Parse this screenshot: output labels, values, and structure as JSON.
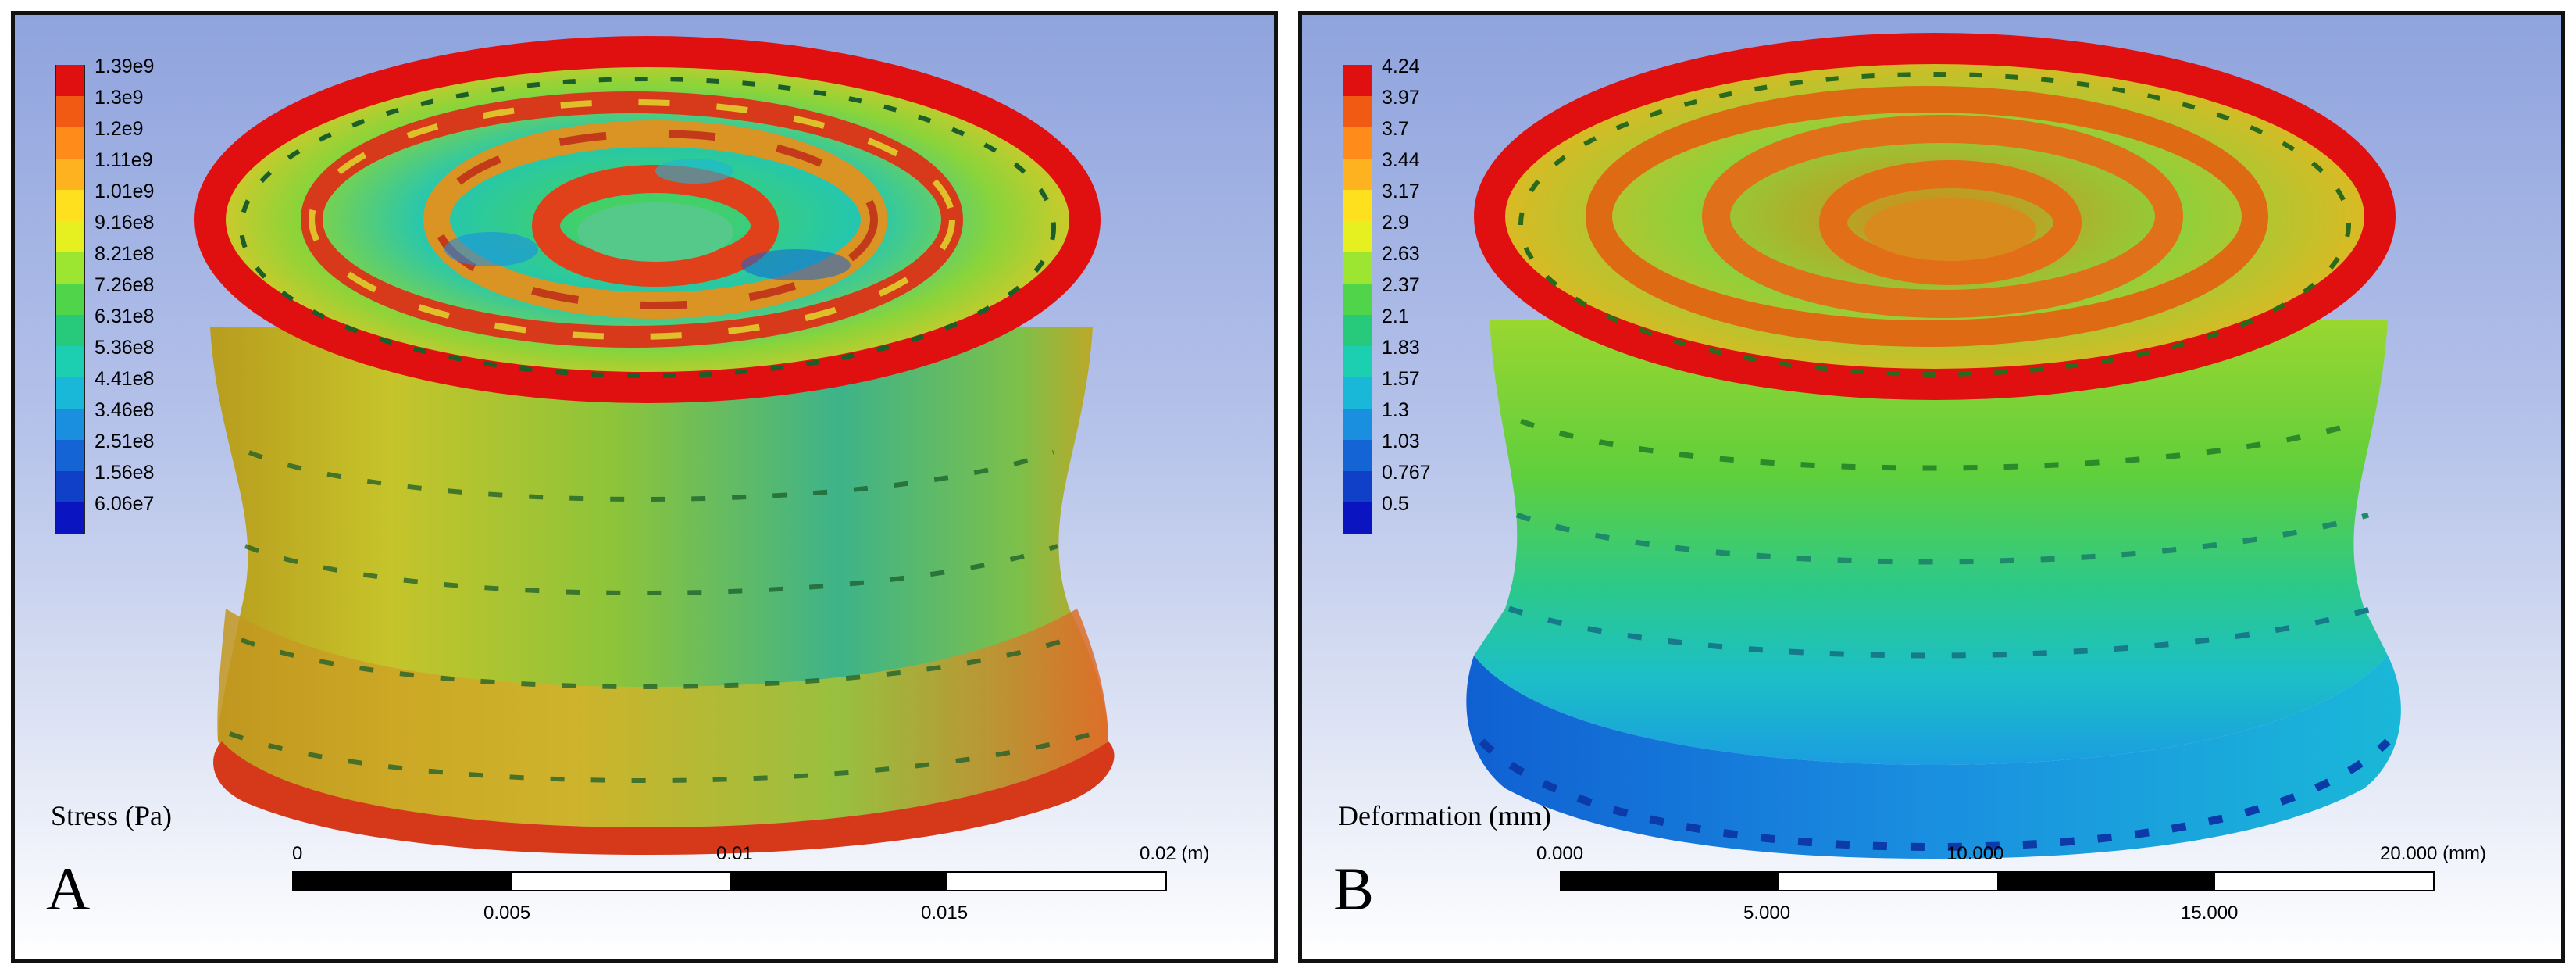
{
  "panels": {
    "a": {
      "letter": "A",
      "quantity": "Stress (Pa)",
      "legend": {
        "labels": [
          "1.39e9",
          "1.3e9",
          "1.2e9",
          "1.11e9",
          "1.01e9",
          "9.16e8",
          "8.21e8",
          "7.26e8",
          "6.31e8",
          "5.36e8",
          "4.41e8",
          "3.46e8",
          "2.51e8",
          "1.56e8",
          "6.06e7"
        ]
      },
      "scale": {
        "top_labels": [
          "0",
          "0.01",
          "0.02 (m)"
        ],
        "bottom_labels": [
          "0.005",
          "0.015"
        ]
      }
    },
    "b": {
      "letter": "B",
      "quantity": "Deformation (mm)",
      "legend": {
        "labels": [
          "4.24",
          "3.97",
          "3.7",
          "3.44",
          "3.17",
          "2.9",
          "2.63",
          "2.37",
          "2.1",
          "1.83",
          "1.57",
          "1.3",
          "1.03",
          "0.767",
          "0.5"
        ]
      },
      "scale": {
        "top_labels": [
          "0.000",
          "10.000",
          "20.000 (mm)"
        ],
        "bottom_labels": [
          "5.000",
          "15.000"
        ]
      }
    }
  },
  "colormap": [
    "#e01010",
    "#f05a12",
    "#ff8c1a",
    "#ffb21f",
    "#ffe01f",
    "#e6f020",
    "#9ce632",
    "#4fd44a",
    "#27c97a",
    "#1ccfb1",
    "#1ab8d8",
    "#1a8fe0",
    "#1464d6",
    "#1040c8",
    "#0a14c0"
  ]
}
